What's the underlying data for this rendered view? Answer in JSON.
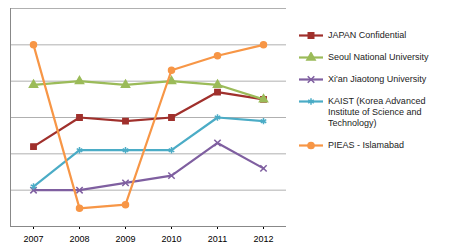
{
  "chart_data": {
    "type": "line",
    "x": [
      2007,
      2008,
      2009,
      2010,
      2011,
      2012
    ],
    "xlim": [
      2006.5,
      2012.5
    ],
    "xticks": [
      2007,
      2008,
      2009,
      2010,
      2011,
      2012
    ],
    "ylim": [
      0,
      6
    ],
    "yticks": [
      0,
      1,
      2,
      3,
      4,
      5,
      6
    ],
    "grid": true,
    "tick_labels": "x",
    "legend": "right",
    "series": [
      {
        "name": "JAPAN Confidential",
        "color": "#a0302c",
        "marker": "square",
        "values": [
          2.2,
          3.0,
          2.9,
          3.0,
          3.7,
          3.5
        ]
      },
      {
        "name": "Seoul National University",
        "color": "#9bbb59",
        "marker": "triangle",
        "values": [
          3.9,
          4.0,
          3.9,
          4.0,
          3.9,
          3.5
        ]
      },
      {
        "name": "Xi'an Jiaotong University",
        "color": "#7f5fa0",
        "marker": "times",
        "values": [
          1.0,
          1.0,
          1.2,
          1.4,
          2.3,
          1.6
        ]
      },
      {
        "name": "KAIST (Korea Advanced Institute of Science and Technology)",
        "color": "#4bacc6",
        "marker": "asterisk",
        "values": [
          1.1,
          2.1,
          2.1,
          2.1,
          3.0,
          2.9
        ]
      },
      {
        "name": "PIEAS - Islamabad",
        "color": "#f79646",
        "marker": "circle",
        "values": [
          5.0,
          0.5,
          0.6,
          4.3,
          4.7,
          5.0
        ]
      }
    ]
  }
}
